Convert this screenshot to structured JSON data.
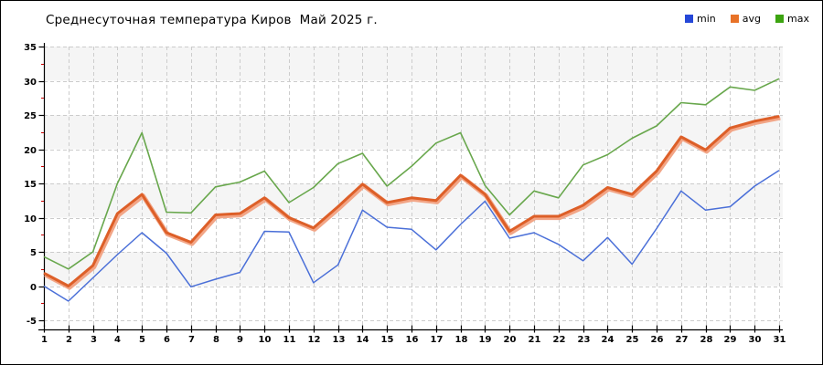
{
  "title": "Среднесуточная температура Киров  Май 2025 г.",
  "legend": {
    "items": [
      {
        "label": "min",
        "color": "#2547d8"
      },
      {
        "label": "avg",
        "color": "#e87227"
      },
      {
        "label": "max",
        "color": "#3ca410"
      }
    ]
  },
  "chart_data": {
    "type": "line",
    "title": "Среднесуточная температура Киров  Май 2025 г.",
    "xlabel": "",
    "ylabel": "",
    "x": [
      1,
      2,
      3,
      4,
      5,
      6,
      7,
      8,
      9,
      10,
      11,
      12,
      13,
      14,
      15,
      16,
      17,
      18,
      19,
      20,
      21,
      22,
      23,
      24,
      25,
      26,
      27,
      28,
      29,
      30,
      31
    ],
    "ylim": [
      -5,
      35
    ],
    "ytick_step": 5,
    "yminor_step": 2.5,
    "grid": true,
    "legend_position": "top-right",
    "series": [
      {
        "name": "min",
        "color": "#4a6fd8",
        "values": [
          0.0,
          -2.2,
          1.2,
          4.6,
          7.8,
          4.8,
          -0.1,
          1.0,
          2.0,
          8.0,
          7.9,
          0.5,
          3.1,
          11.1,
          8.6,
          8.3,
          5.3,
          9.0,
          12.4,
          7.0,
          7.8,
          6.1,
          3.7,
          7.1,
          3.2,
          8.4,
          13.9,
          11.1,
          11.6,
          14.6,
          16.9
        ]
      },
      {
        "name": "avg",
        "color": "#dd5f28",
        "halo_color": "#f2a586",
        "values": [
          1.9,
          0.0,
          3.0,
          10.6,
          13.4,
          7.8,
          6.4,
          10.4,
          10.6,
          12.9,
          10.0,
          8.5,
          11.6,
          14.9,
          12.2,
          12.9,
          12.5,
          16.2,
          13.4,
          8.0,
          10.2,
          10.2,
          11.8,
          14.4,
          13.4,
          16.8,
          21.8,
          19.9,
          23.1,
          24.1,
          24.8
        ]
      },
      {
        "name": "max",
        "color": "#68a74c",
        "values": [
          4.3,
          2.5,
          5.0,
          15.0,
          22.4,
          10.8,
          10.7,
          14.5,
          15.2,
          16.8,
          12.2,
          14.4,
          17.9,
          19.4,
          14.6,
          17.5,
          20.9,
          22.4,
          14.7,
          10.4,
          13.9,
          12.9,
          17.7,
          19.2,
          21.6,
          23.4,
          26.8,
          26.5,
          29.1,
          28.6,
          30.3
        ]
      }
    ],
    "colors": {
      "band_fill": "#f5f5f5",
      "gridline": "#cccccc",
      "axis": "#000000",
      "minor_tick": "#cc0000",
      "tick_label": "#000000"
    }
  }
}
